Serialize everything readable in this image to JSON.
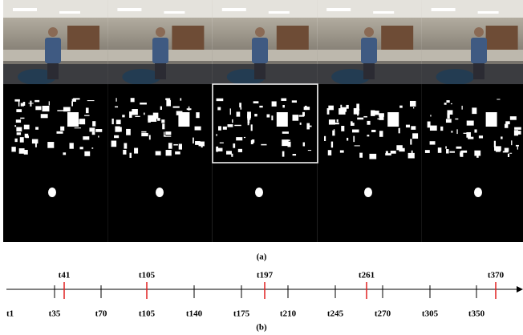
{
  "figure": {
    "caption_a": "(a)",
    "caption_b": "(b)"
  },
  "timeline": {
    "ticks": [
      "t1",
      "t35",
      "t70",
      "t105",
      "t140",
      "t175",
      "t210",
      "t245",
      "t270",
      "t305",
      "t350"
    ],
    "markers": [
      "t41",
      "t105",
      "t197",
      "t261",
      "t370"
    ]
  }
}
